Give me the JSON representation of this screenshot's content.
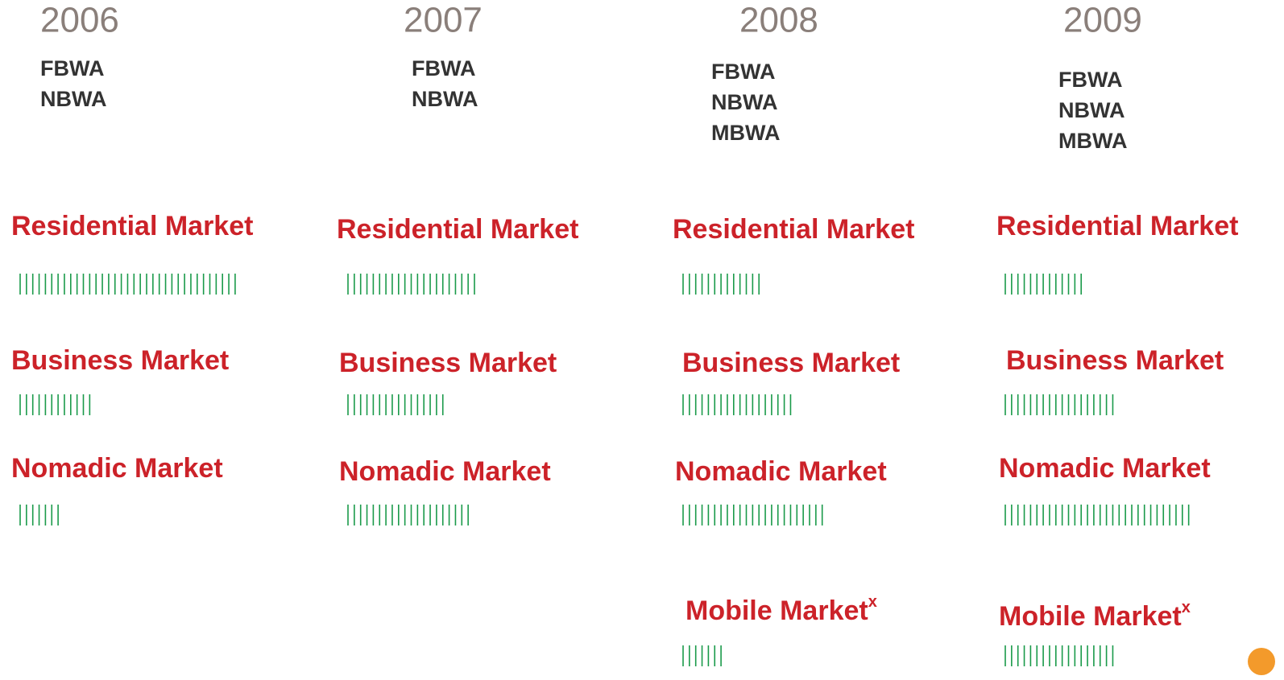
{
  "columns": [
    {
      "year": "2006",
      "technologies": [
        "FBWA",
        "NBWA"
      ],
      "markets": [
        {
          "name": "Residential Market",
          "ticks": 35
        },
        {
          "name": "Business Market",
          "ticks": 12
        },
        {
          "name": "Nomadic Market",
          "ticks": 7
        }
      ]
    },
    {
      "year": "2007",
      "technologies": [
        "FBWA",
        "NBWA"
      ],
      "markets": [
        {
          "name": "Residential Market",
          "ticks": 21
        },
        {
          "name": "Business Market",
          "ticks": 16
        },
        {
          "name": "Nomadic Market",
          "ticks": 20
        }
      ]
    },
    {
      "year": "2008",
      "technologies": [
        "FBWA",
        "NBWA",
        "MBWA"
      ],
      "markets": [
        {
          "name": "Residential Market",
          "ticks": 13
        },
        {
          "name": "Business Market",
          "ticks": 18
        },
        {
          "name": "Nomadic Market",
          "ticks": 23
        },
        {
          "name": "Mobile Market",
          "note": "x",
          "ticks": 7
        }
      ]
    },
    {
      "year": "2009",
      "technologies": [
        "FBWA",
        "NBWA",
        "MBWA"
      ],
      "markets": [
        {
          "name": "Residential Market",
          "ticks": 13
        },
        {
          "name": "Business Market",
          "ticks": 18
        },
        {
          "name": "Nomadic Market",
          "ticks": 30
        },
        {
          "name": "Mobile Market",
          "note": "x",
          "ticks": 18
        }
      ]
    }
  ]
}
